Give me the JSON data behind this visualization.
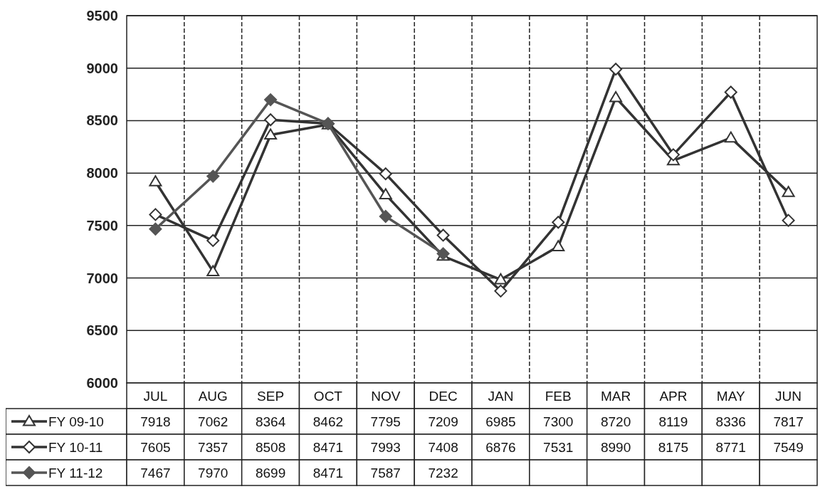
{
  "chart_data": {
    "type": "line",
    "categories": [
      "JUL",
      "AUG",
      "SEP",
      "OCT",
      "NOV",
      "DEC",
      "JAN",
      "FEB",
      "MAR",
      "APR",
      "MAY",
      "JUN"
    ],
    "series": [
      {
        "name": "FY 09-10",
        "color": "#333333",
        "marker": "triangle",
        "values": [
          7918,
          7062,
          8364,
          8462,
          7795,
          7209,
          6985,
          7300,
          8720,
          8119,
          8336,
          7817
        ]
      },
      {
        "name": "FY 10-11",
        "color": "#333333",
        "marker": "diamond",
        "values": [
          7605,
          7357,
          8508,
          8471,
          7993,
          7408,
          6876,
          7531,
          8990,
          8175,
          8771,
          7549
        ]
      },
      {
        "name": "FY 11-12",
        "color": "#555555",
        "marker": "diamond",
        "values": [
          7467,
          7970,
          8699,
          8471,
          7587,
          7232,
          null,
          null,
          null,
          null,
          null,
          null
        ]
      }
    ],
    "ylim": [
      6000,
      9500
    ],
    "yticks": [
      6000,
      6500,
      7000,
      7500,
      8000,
      8500,
      9000,
      9500
    ],
    "grid": true,
    "data_labels": true,
    "legend": "bottom",
    "line_style": "solid"
  }
}
